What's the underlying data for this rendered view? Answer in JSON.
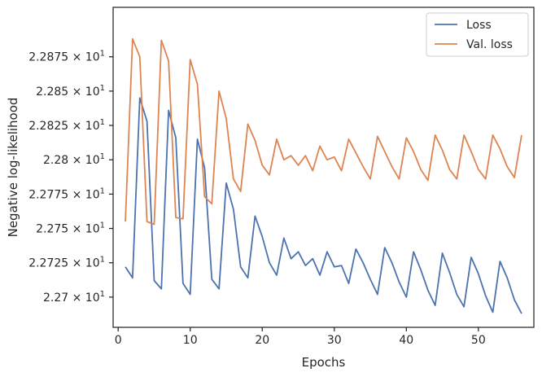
{
  "chart_data": {
    "type": "line",
    "title": "",
    "xlabel": "Epochs",
    "ylabel": "Negative log-likelihood",
    "xlim": [
      -0.7,
      57.7
    ],
    "ylim": [
      22.678,
      22.911
    ],
    "xticks": [
      0,
      10,
      20,
      30,
      40,
      50
    ],
    "xtick_labels": [
      "0",
      "10",
      "20",
      "30",
      "40",
      "50"
    ],
    "yticks": [
      22.7,
      22.725,
      22.75,
      22.775,
      22.8,
      22.825,
      22.85,
      22.875
    ],
    "ytick_labels": [
      {
        "mantissa": "2.27",
        "base": "10",
        "exp": "1"
      },
      {
        "mantissa": "2.2725",
        "base": "10",
        "exp": "1"
      },
      {
        "mantissa": "2.275",
        "base": "10",
        "exp": "1"
      },
      {
        "mantissa": "2.2775",
        "base": "10",
        "exp": "1"
      },
      {
        "mantissa": "2.28",
        "base": "10",
        "exp": "1"
      },
      {
        "mantissa": "2.2825",
        "base": "10",
        "exp": "1"
      },
      {
        "mantissa": "2.285",
        "base": "10",
        "exp": "1"
      },
      {
        "mantissa": "2.2875",
        "base": "10",
        "exp": "1"
      }
    ],
    "grid": false,
    "legend_position": "top-right",
    "x": [
      1,
      2,
      3,
      4,
      5,
      6,
      7,
      8,
      9,
      10,
      11,
      12,
      13,
      14,
      15,
      16,
      17,
      18,
      19,
      20,
      21,
      22,
      23,
      24,
      25,
      26,
      27,
      28,
      29,
      30,
      31,
      32,
      33,
      34,
      35,
      36,
      37,
      38,
      39,
      40,
      41,
      42,
      43,
      44,
      45,
      46,
      47,
      48,
      49,
      50,
      51,
      52,
      53,
      54,
      55,
      56
    ],
    "series": [
      {
        "name": "Loss",
        "color": "#4c72b0",
        "values": [
          22.722,
          22.714,
          22.845,
          22.828,
          22.712,
          22.706,
          22.836,
          22.816,
          22.71,
          22.702,
          22.815,
          22.794,
          22.713,
          22.706,
          22.783,
          22.764,
          22.722,
          22.714,
          22.759,
          22.744,
          22.725,
          22.716,
          22.743,
          22.728,
          22.733,
          22.723,
          22.728,
          22.716,
          22.733,
          22.722,
          22.723,
          22.71,
          22.735,
          22.725,
          22.713,
          22.702,
          22.736,
          22.725,
          22.711,
          22.7,
          22.733,
          22.72,
          22.705,
          22.694,
          22.732,
          22.718,
          22.702,
          22.693,
          22.729,
          22.717,
          22.701,
          22.689,
          22.726,
          22.714,
          22.698,
          22.688
        ]
      },
      {
        "name": "Val. loss",
        "color": "#dd8452",
        "values": [
          22.755,
          22.888,
          22.875,
          22.755,
          22.753,
          22.887,
          22.872,
          22.758,
          22.757,
          22.873,
          22.855,
          22.773,
          22.768,
          22.85,
          22.83,
          22.786,
          22.777,
          22.826,
          22.814,
          22.796,
          22.789,
          22.815,
          22.8,
          22.803,
          22.796,
          22.803,
          22.792,
          22.81,
          22.8,
          22.802,
          22.792,
          22.815,
          22.805,
          22.795,
          22.786,
          22.817,
          22.806,
          22.795,
          22.786,
          22.816,
          22.806,
          22.793,
          22.785,
          22.818,
          22.807,
          22.793,
          22.786,
          22.818,
          22.806,
          22.793,
          22.786,
          22.818,
          22.808,
          22.795,
          22.787,
          22.818
        ]
      }
    ]
  }
}
